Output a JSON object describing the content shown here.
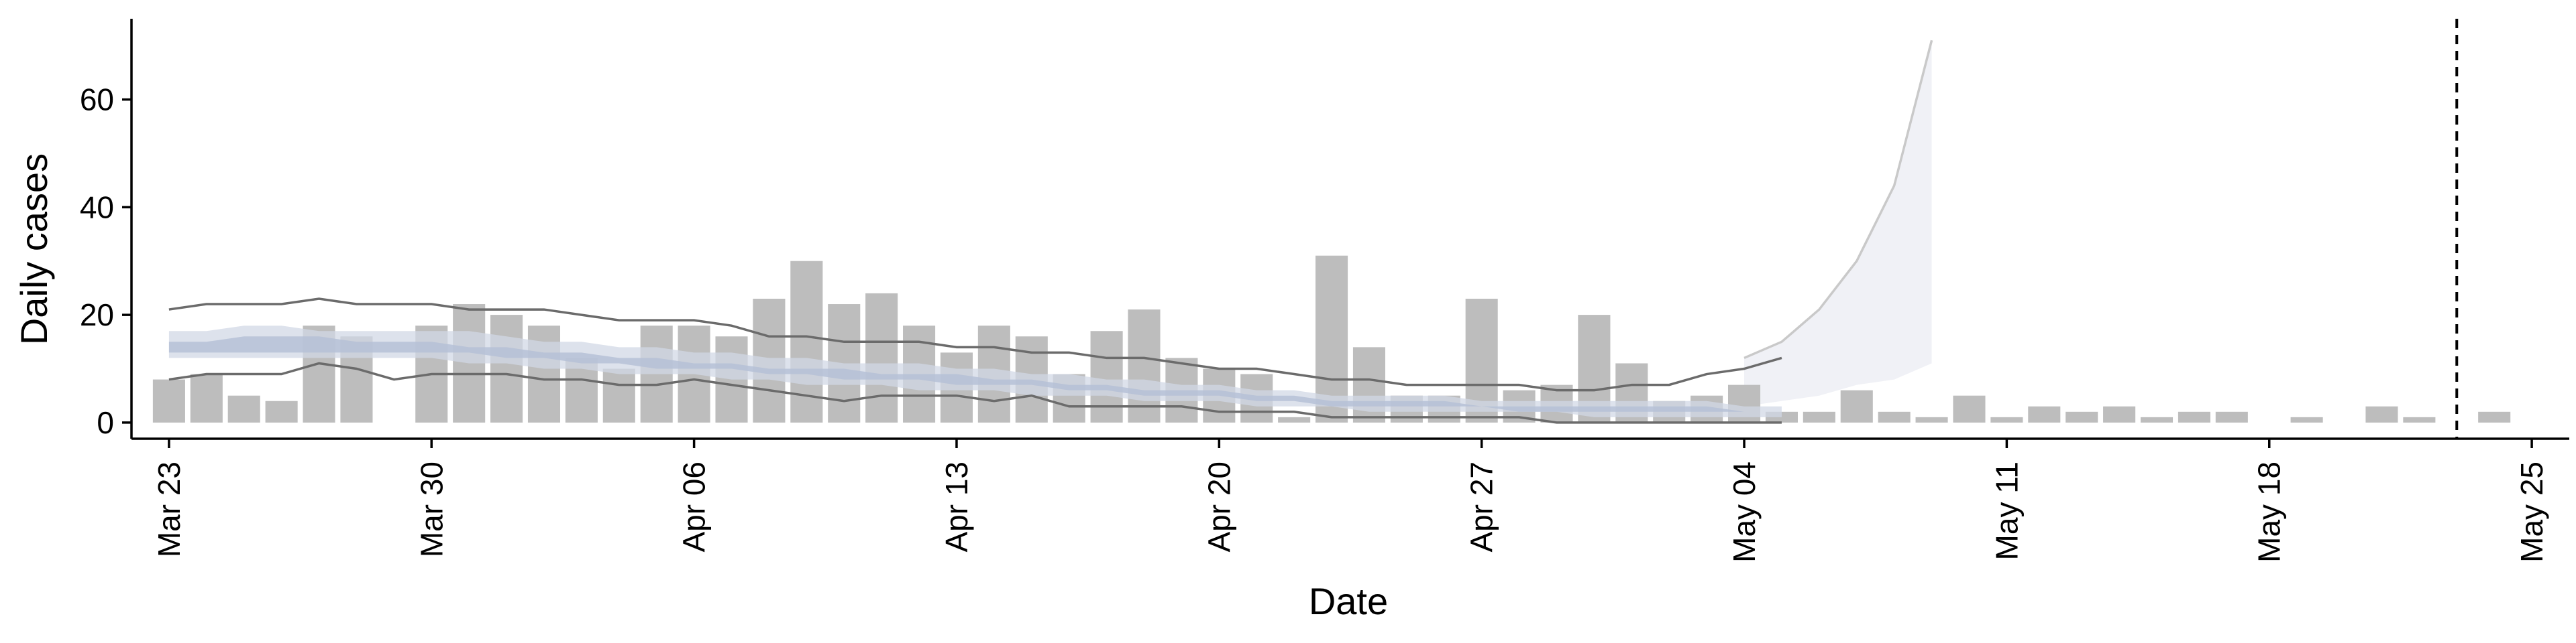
{
  "chart_data": {
    "type": "bar",
    "xlabel": "Date",
    "ylabel": "Daily cases",
    "ylim": [
      -3,
      75
    ],
    "xlim": [
      "2020-03-22",
      "2020-05-26"
    ],
    "yticks": [
      0,
      20,
      40,
      60
    ],
    "xticks": [
      "2020-03-23",
      "2020-03-30",
      "2020-04-06",
      "2020-04-13",
      "2020-04-20",
      "2020-04-27",
      "2020-05-04",
      "2020-05-11",
      "2020-05-18",
      "2020-05-25"
    ],
    "xtick_labels": [
      "Mar 23",
      "Mar 30",
      "Apr 06",
      "Apr 13",
      "Apr 20",
      "Apr 27",
      "May 04",
      "May 11",
      "May 18",
      "May 25"
    ],
    "grid": false,
    "reference_line": {
      "date": "2020-05-23",
      "style": "dashed"
    },
    "colors": {
      "bars": "#bdbdbd",
      "band_inner": "#b4bfd6",
      "band_outer": "#d2d8e6",
      "forecast_band": "#f0f1f6",
      "forecast_line": "#c9c9c9",
      "bound_lines": "#6b6b6b",
      "axis": "#000000"
    },
    "bars": {
      "start_date": "2020-03-23",
      "values": [
        8,
        9,
        5,
        4,
        18,
        16,
        0,
        18,
        22,
        20,
        18,
        12,
        10,
        18,
        18,
        16,
        23,
        30,
        22,
        24,
        18,
        13,
        18,
        16,
        9,
        17,
        21,
        12,
        10,
        9,
        1,
        31,
        14,
        5,
        5,
        23,
        6,
        7,
        20,
        11,
        4,
        5,
        7,
        2,
        2,
        6,
        2,
        1,
        5,
        1,
        3,
        2,
        3,
        1,
        2,
        2,
        0,
        1,
        0,
        3,
        1,
        0,
        2
      ]
    },
    "interval_upper": {
      "start_date": "2020-03-23",
      "values": [
        21,
        22,
        22,
        22,
        23,
        22,
        22,
        22,
        21,
        21,
        21,
        20,
        19,
        19,
        19,
        18,
        16,
        16,
        15,
        15,
        15,
        14,
        14,
        13,
        13,
        12,
        12,
        11,
        10,
        10,
        9,
        8,
        8,
        7,
        7,
        7,
        7,
        6,
        6,
        7,
        7,
        9,
        10,
        12
      ]
    },
    "interval_lower": {
      "start_date": "2020-03-23",
      "values": [
        8,
        9,
        9,
        9,
        11,
        10,
        8,
        9,
        9,
        9,
        8,
        8,
        7,
        7,
        8,
        7,
        6,
        5,
        4,
        5,
        5,
        5,
        4,
        5,
        3,
        3,
        3,
        3,
        2,
        2,
        2,
        1,
        1,
        1,
        1,
        1,
        1,
        0,
        0,
        0,
        0,
        0,
        0,
        0
      ]
    },
    "band_outer_upper": {
      "start_date": "2020-03-23",
      "values": [
        17,
        17,
        18,
        18,
        17,
        17,
        17,
        17,
        17,
        16,
        15,
        15,
        14,
        14,
        13,
        13,
        12,
        12,
        11,
        11,
        11,
        10,
        10,
        9,
        9,
        8,
        8,
        7,
        7,
        6,
        6,
        5,
        5,
        5,
        5,
        4,
        4,
        4,
        4,
        4,
        4,
        4,
        3,
        3
      ]
    },
    "band_outer_lower": {
      "start_date": "2020-03-23",
      "values": [
        12,
        12,
        12,
        12,
        12,
        12,
        12,
        12,
        11,
        11,
        10,
        10,
        9,
        9,
        9,
        8,
        8,
        7,
        7,
        7,
        6,
        6,
        6,
        5,
        5,
        5,
        4,
        4,
        4,
        3,
        3,
        3,
        2,
        2,
        2,
        2,
        2,
        2,
        1,
        1,
        1,
        1,
        1,
        1
      ]
    },
    "band_inner_upper": {
      "start_date": "2020-03-23",
      "values": [
        15,
        15,
        16,
        16,
        16,
        15,
        15,
        15,
        14,
        14,
        13,
        13,
        12,
        12,
        11,
        11,
        10,
        10,
        10,
        9,
        9,
        9,
        8,
        8,
        7,
        7,
        6,
        6,
        6,
        5,
        5,
        4,
        4,
        4,
        4,
        3,
        3,
        3,
        3,
        3,
        3,
        3,
        2,
        2
      ]
    },
    "band_inner_lower": {
      "start_date": "2020-03-23",
      "values": [
        13,
        13,
        13,
        13,
        13,
        13,
        13,
        13,
        13,
        12,
        12,
        11,
        11,
        10,
        10,
        10,
        9,
        9,
        8,
        8,
        8,
        7,
        7,
        7,
        6,
        6,
        5,
        5,
        5,
        4,
        4,
        3,
        3,
        3,
        3,
        3,
        2,
        2,
        2,
        2,
        2,
        2,
        2,
        2
      ]
    },
    "forecast_upper": {
      "start_date": "2020-05-04",
      "values": [
        12,
        15,
        21,
        30,
        44,
        71
      ]
    },
    "forecast_lower": {
      "start_date": "2020-05-04",
      "values": [
        3,
        4,
        5,
        7,
        8,
        11
      ]
    }
  }
}
